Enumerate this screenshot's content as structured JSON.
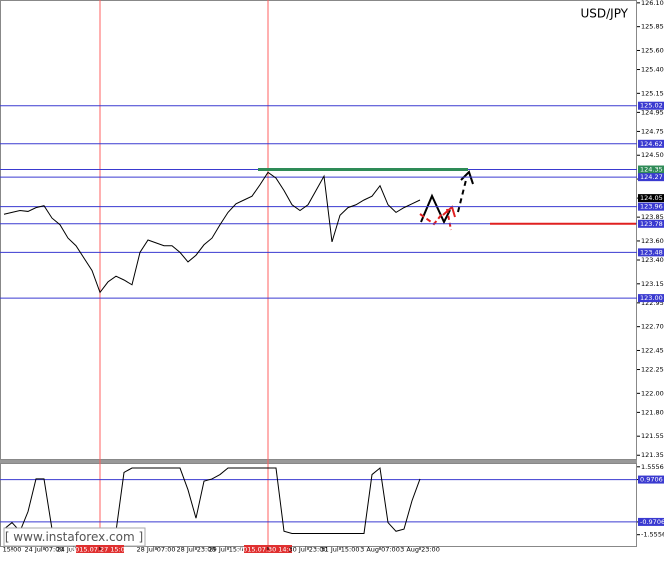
{
  "chart_data": [
    {
      "type": "line",
      "title": "USD/JPY",
      "categories": [
        null,
        "15:00",
        null,
        null,
        null,
        "24 Jul 07:00",
        null,
        null,
        null,
        "24 Jul 23:00",
        null,
        null,
        "2015.07.27 15:00",
        null,
        null,
        null,
        null,
        null,
        null,
        "28 Jul 07:00",
        null,
        null,
        null,
        null,
        "28 Jul 23:00",
        null,
        null,
        null,
        "29 Jul 15:00",
        null,
        null,
        null,
        null,
        "2015.07.30 14:00",
        null,
        null,
        null,
        null,
        "30 Jul 23:00",
        null,
        null,
        null,
        "31 Jul 15:00",
        null,
        null,
        null,
        null,
        "3 Aug 07:00",
        null,
        null,
        null,
        null,
        "3 Aug 23:00"
      ],
      "series": [
        {
          "color": "#000000",
          "values": [
            123.88,
            123.9,
            123.92,
            123.91,
            123.95,
            123.97,
            123.84,
            123.77,
            123.63,
            123.55,
            123.42,
            123.29,
            123.06,
            123.17,
            123.23,
            123.19,
            123.14,
            123.48,
            123.61,
            123.58,
            123.55,
            123.55,
            123.48,
            123.38,
            123.45,
            123.56,
            123.63,
            123.77,
            123.9,
            123.99,
            124.03,
            124.07,
            124.19,
            124.32,
            124.26,
            124.13,
            123.98,
            123.92,
            123.98,
            124.13,
            124.28,
            123.59,
            123.87,
            123.95,
            123.98,
            124.03,
            124.07,
            124.18,
            123.98,
            123.9,
            123.95,
            123.99,
            124.03
          ]
        }
      ],
      "ylim": [
        121.3,
        126.13
      ],
      "yticks": [
        {
          "value": 126.1,
          "label": "126.10"
        },
        125.85,
        {
          "value": 125.6,
          "label": "125.60"
        },
        {
          "value": 125.4,
          "label": "125.40"
        },
        125.15,
        124.95,
        124.75,
        {
          "value": 124.5,
          "label": "124.50"
        },
        124.25,
        124.05,
        123.85,
        {
          "value": 123.6,
          "label": "123.60"
        },
        {
          "value": 123.4,
          "label": "123.40"
        },
        123.15,
        122.95,
        {
          "value": 122.7,
          "label": "122.70"
        },
        122.45,
        122.25,
        {
          "value": 122,
          "label": "122.00"
        },
        {
          "value": 121.8,
          "label": "121.80"
        },
        121.55,
        121.35
      ],
      "levels": [
        125.02,
        124.62,
        124.35,
        124.27,
        123.96,
        123.78,
        123.48,
        {
          "value": 123,
          "label": "123.00"
        }
      ],
      "level_color": "#3a3ad0",
      "last_price": 124.05,
      "watermark": "[ www.instaforex.com ]"
    },
    {
      "type": "line",
      "series": [
        {
          "color": "#000000",
          "values": [
            -1.3,
            -1.0,
            -1.4,
            -0.5,
            1.0,
            1.0,
            -1.3,
            -1.4,
            -1.4,
            -1.4,
            -1.4,
            -1.4,
            -1.4,
            -1.4,
            -1.4,
            1.3,
            1.5,
            1.5,
            1.5,
            1.5,
            1.5,
            1.5,
            1.5,
            0.5,
            -0.8,
            0.9,
            1.0,
            1.2,
            1.5,
            1.5,
            1.5,
            1.5,
            1.5,
            1.5,
            1.5,
            -1.4,
            -1.5,
            -1.5,
            -1.5,
            -1.5,
            -1.5,
            -1.5,
            -1.5,
            -1.5,
            -1.5,
            -1.5,
            1.2,
            1.5,
            -1.0,
            -1.4,
            -1.3,
            0.0,
            1.0
          ]
        }
      ],
      "ylim": [
        -2.12,
        1.73
      ],
      "yticks": [
        1.5556,
        0.9706,
        -0.9706,
        -1.5556
      ],
      "levels": [
        0.9706,
        -0.9706
      ]
    }
  ]
}
